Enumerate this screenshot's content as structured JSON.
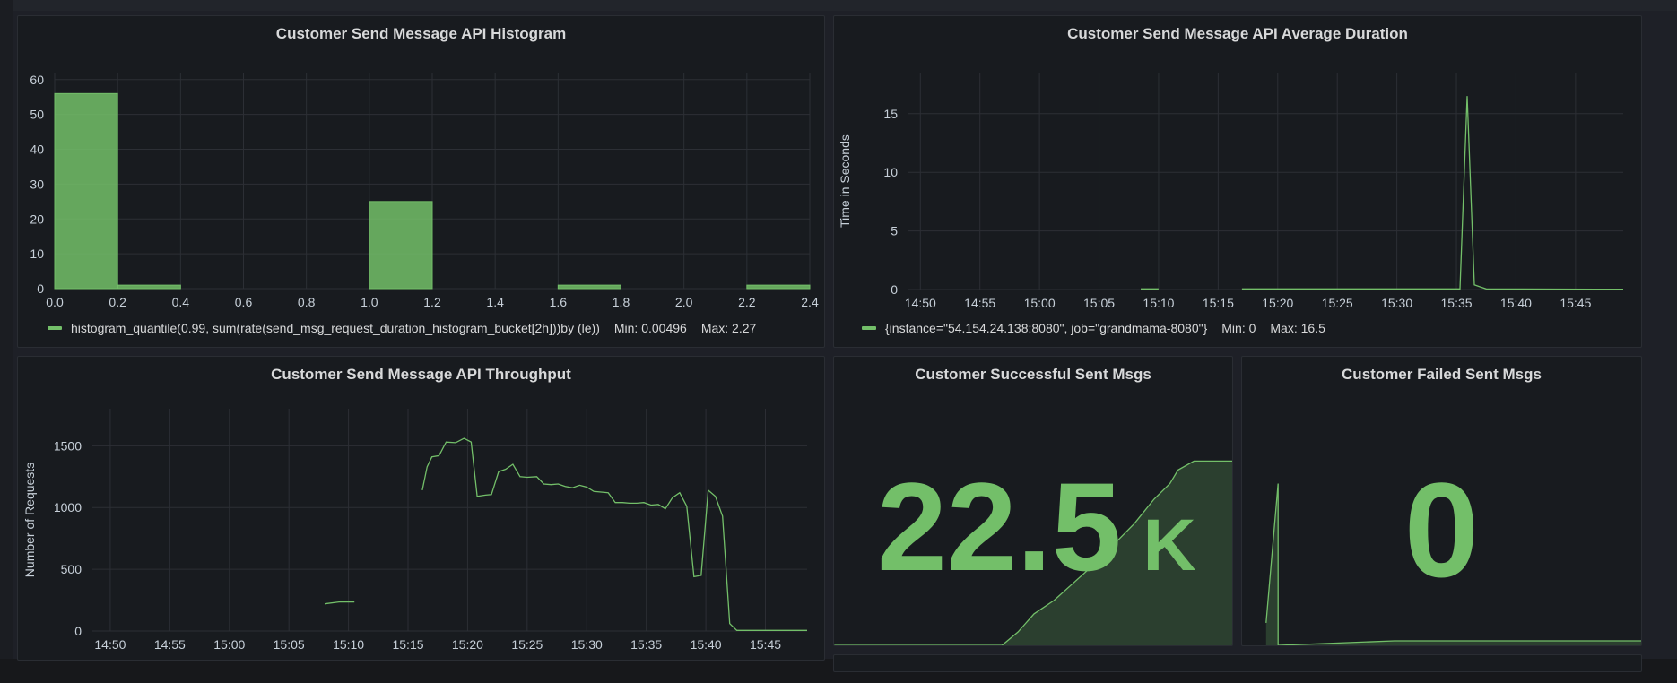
{
  "colors": {
    "accent": "#73bf69",
    "panel_bg": "#181b1f",
    "page_bg": "#1e2027"
  },
  "panels": {
    "histogram": {
      "title": "Customer Send Message API Histogram",
      "legend": {
        "series": "histogram_quantile(0.99, sum(rate(send_msg_request_duration_histogram_bucket[2h]))by (le))",
        "min": "Min: 0.00496",
        "max": "Max: 2.27"
      }
    },
    "avg_duration": {
      "title": "Customer Send Message API Average Duration",
      "legend": {
        "series": "{instance=\"54.154.24.138:8080\", job=\"grandmama-8080\"}",
        "min": "Min: 0",
        "max": "Max: 16.5"
      }
    },
    "throughput": {
      "title": "Customer Send Message API Throughput"
    },
    "success": {
      "title": "Customer Successful Sent Msgs",
      "value": "22.5",
      "unit": "K"
    },
    "failed": {
      "title": "Customer Failed Sent Msgs",
      "value": "0"
    }
  },
  "chart_data": [
    {
      "id": "histogram",
      "type": "bar",
      "title": "Customer Send Message API Histogram",
      "x_ticks": [
        "0.0",
        "0.2",
        "0.4",
        "0.6",
        "0.8",
        "1.0",
        "1.2",
        "1.4",
        "1.6",
        "1.8",
        "2.0",
        "2.2",
        "2.4"
      ],
      "y_ticks": [
        "0",
        "10",
        "20",
        "30",
        "40",
        "50",
        "60"
      ],
      "xlim": [
        0,
        2.4
      ],
      "ylim": [
        0,
        62
      ],
      "bins": [
        {
          "from": 0.0,
          "to": 0.2,
          "value": 56
        },
        {
          "from": 0.2,
          "to": 0.4,
          "value": 1
        },
        {
          "from": 1.0,
          "to": 1.2,
          "value": 25
        },
        {
          "from": 1.6,
          "to": 1.8,
          "value": 1
        },
        {
          "from": 2.2,
          "to": 2.4,
          "value": 1
        }
      ]
    },
    {
      "id": "avg_duration",
      "type": "line",
      "title": "Customer Send Message API Average Duration",
      "ylabel": "Time in Seconds",
      "x_ticks": [
        "14:50",
        "14:55",
        "15:00",
        "15:05",
        "15:10",
        "15:15",
        "15:20",
        "15:25",
        "15:30",
        "15:35",
        "15:40",
        "15:45"
      ],
      "y_ticks": [
        "0",
        "5",
        "10",
        "15"
      ],
      "xlim": [
        -1,
        59
      ],
      "ylim": [
        0,
        18.5
      ],
      "segments": [
        [
          [
            18.5,
            0.05
          ],
          [
            20.0,
            0.05
          ]
        ],
        [
          [
            27.0,
            0.05
          ],
          [
            45.3,
            0.05
          ],
          [
            45.9,
            16.5
          ],
          [
            46.5,
            0.4
          ],
          [
            47.5,
            0.05
          ],
          [
            59.0,
            0.02
          ]
        ]
      ]
    },
    {
      "id": "throughput",
      "type": "line",
      "title": "Customer Send Message API Throughput",
      "ylabel": "Number of Requests",
      "x_ticks": [
        "14:50",
        "14:55",
        "15:00",
        "15:05",
        "15:10",
        "15:15",
        "15:20",
        "15:25",
        "15:30",
        "15:35",
        "15:40",
        "15:45"
      ],
      "y_ticks": [
        "0",
        "500",
        "1000",
        "1500"
      ],
      "xlim": [
        -1.5,
        58.5
      ],
      "ylim": [
        0,
        1800
      ],
      "segments": [
        [
          [
            18.0,
            220
          ],
          [
            19.2,
            235
          ],
          [
            20.5,
            235
          ]
        ],
        [
          [
            26.2,
            1140
          ],
          [
            26.6,
            1330
          ],
          [
            27.0,
            1410
          ],
          [
            27.6,
            1420
          ],
          [
            28.2,
            1530
          ],
          [
            29.0,
            1525
          ],
          [
            29.7,
            1560
          ],
          [
            30.3,
            1530
          ],
          [
            30.8,
            1090
          ],
          [
            31.5,
            1100
          ],
          [
            32.0,
            1105
          ],
          [
            32.6,
            1290
          ],
          [
            33.2,
            1310
          ],
          [
            33.8,
            1350
          ],
          [
            34.4,
            1250
          ],
          [
            35.0,
            1245
          ],
          [
            35.8,
            1250
          ],
          [
            36.4,
            1190
          ],
          [
            37.0,
            1185
          ],
          [
            37.6,
            1190
          ],
          [
            38.2,
            1170
          ],
          [
            38.8,
            1160
          ],
          [
            39.4,
            1180
          ],
          [
            40.0,
            1165
          ],
          [
            40.6,
            1130
          ],
          [
            41.2,
            1125
          ],
          [
            41.8,
            1120
          ],
          [
            42.4,
            1040
          ],
          [
            43.0,
            1040
          ],
          [
            43.6,
            1035
          ],
          [
            44.2,
            1035
          ],
          [
            44.8,
            1040
          ],
          [
            45.4,
            1020
          ],
          [
            46.0,
            1025
          ],
          [
            46.6,
            990
          ],
          [
            47.2,
            1080
          ],
          [
            47.8,
            1120
          ],
          [
            48.4,
            1010
          ],
          [
            49.0,
            440
          ],
          [
            49.6,
            450
          ],
          [
            50.2,
            1140
          ],
          [
            50.8,
            1090
          ],
          [
            51.4,
            930
          ],
          [
            52.0,
            60
          ],
          [
            52.6,
            5
          ],
          [
            55.0,
            5
          ],
          [
            58.5,
            5
          ]
        ]
      ]
    },
    {
      "id": "success",
      "type": "area",
      "title": "Customer Successful Sent Msgs",
      "value_text": "22.5 K",
      "x": [
        0,
        0.42,
        0.46,
        0.5,
        0.55,
        0.6,
        0.65,
        0.7,
        0.75,
        0.8,
        0.84,
        0.86,
        0.9,
        0.95,
        1.0
      ],
      "values": [
        0,
        0,
        0.06,
        0.14,
        0.2,
        0.28,
        0.36,
        0.45,
        0.54,
        0.65,
        0.72,
        0.78,
        0.82,
        0.82,
        0.82
      ]
    },
    {
      "id": "failed",
      "type": "area",
      "title": "Customer Failed Sent Msgs",
      "value_text": "0",
      "x": [
        0.06,
        0.09,
        0.09,
        0.38,
        1.0
      ],
      "values": [
        0.1,
        0.72,
        0,
        0.02,
        0.02
      ]
    }
  ]
}
